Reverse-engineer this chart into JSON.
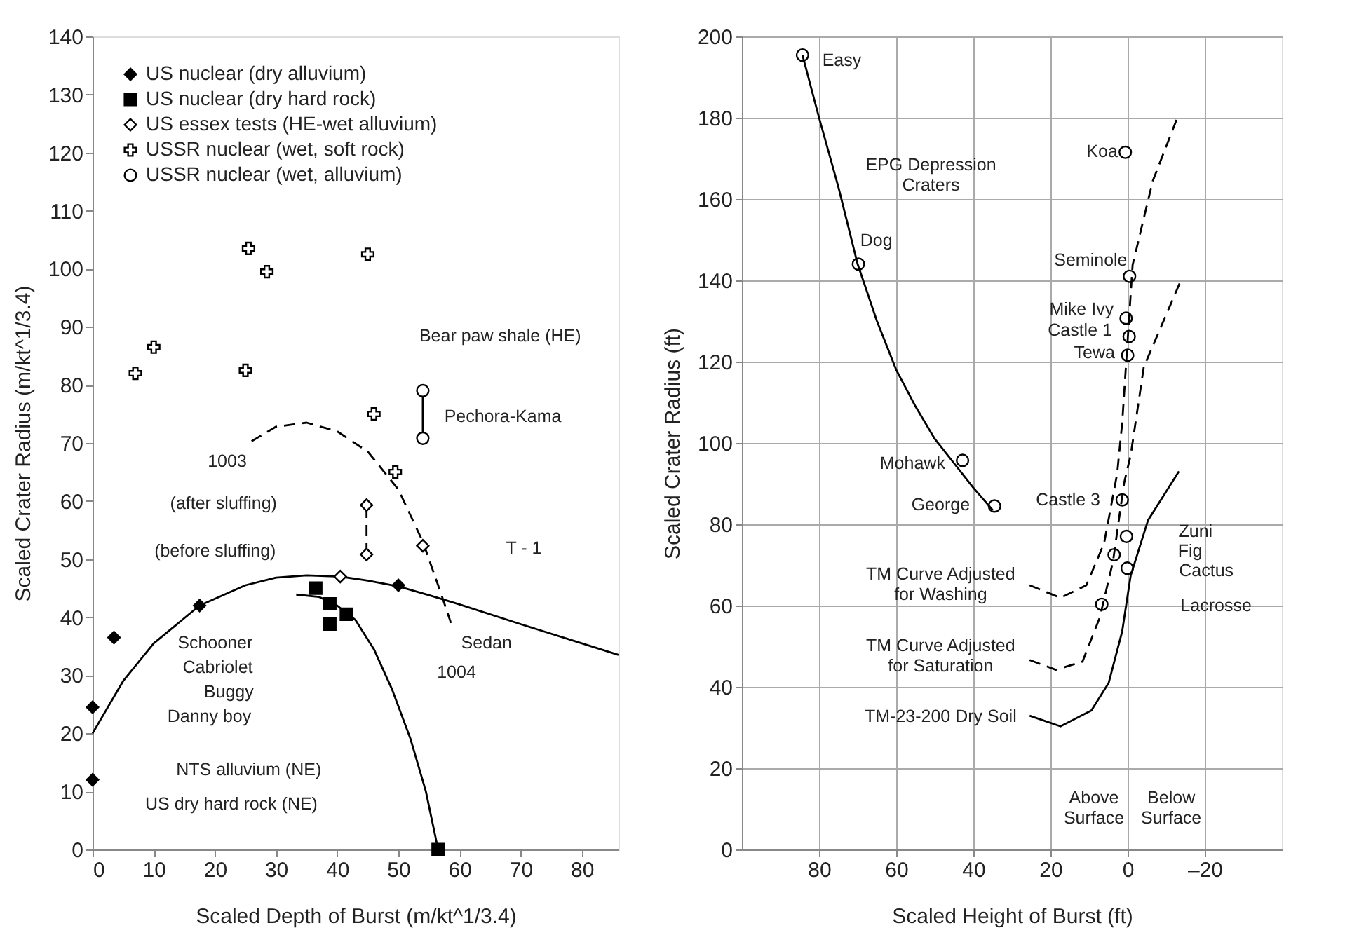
{
  "chart_data": [
    {
      "type": "scatter",
      "xlabel": "Scaled Depth of Burst (m/kt^1/3.4)",
      "ylabel": "Scaled Crater Radius (m/kt^1/3.4)",
      "xlim": [
        0,
        86
      ],
      "ylim": [
        0,
        140
      ],
      "xticks": [
        0,
        10,
        20,
        30,
        40,
        50,
        60,
        70,
        80
      ],
      "yticks": [
        0,
        10,
        20,
        30,
        40,
        50,
        60,
        70,
        80,
        90,
        100,
        110,
        120,
        130,
        140
      ],
      "grid": false,
      "legend": "top left",
      "series": [
        {
          "name": "US nuclear (dry alluvium)",
          "marker": "diamond",
          "color": "#000000",
          "x": [
            0,
            0,
            3.5,
            17.5,
            50
          ],
          "values": [
            12,
            24.5,
            36.5,
            42,
            45.5
          ]
        },
        {
          "name": "US nuclear (dry hard rock)",
          "marker": "square",
          "color": "#000000",
          "x": [
            36.5,
            38.8,
            38.8,
            41.5,
            56.5
          ],
          "values": [
            45,
            42.3,
            38.8,
            40.5,
            0
          ]
        },
        {
          "name": "US essex tests (HE-wet alluvium)",
          "marker": "diamond",
          "color": "#ffffff",
          "x": [
            44.8,
            44.8,
            40.5,
            54
          ],
          "values": [
            59.3,
            50.8,
            47,
            52.3
          ]
        },
        {
          "name": "USSR nuclear (wet, soft rock)",
          "marker": "cross",
          "color": "#ffffff",
          "x": [
            7,
            10,
            25,
            25.5,
            28.5,
            45,
            46,
            49.5
          ],
          "values": [
            82,
            86.5,
            82.5,
            103.5,
            99.5,
            102.5,
            75,
            65
          ]
        },
        {
          "name": "USSR nuclear (wet, alluvium)",
          "marker": "circle",
          "color": "#ffffff",
          "x": [
            54,
            54
          ],
          "values": [
            79,
            70.8
          ]
        },
        {
          "type": "line",
          "line_style": "solid",
          "color": "#000000",
          "x": [
            0,
            5,
            10,
            17.5,
            25,
            30,
            35,
            40.5,
            45,
            50,
            55,
            60,
            70,
            80,
            86
          ],
          "values": [
            20,
            29,
            35.5,
            42,
            45.5,
            46.8,
            47.2,
            47,
            46.3,
            45.3,
            43.8,
            42.2,
            38.8,
            35.5,
            33.5
          ]
        },
        {
          "type": "line",
          "line_style": "solid",
          "color": "#000000",
          "x": [
            33.3,
            37,
            40,
            43,
            46,
            49,
            52,
            54.5,
            56.5
          ],
          "values": [
            43.9,
            43.5,
            42,
            39.5,
            34.5,
            27.5,
            19,
            10,
            0
          ]
        },
        {
          "type": "line",
          "line_style": "dashed",
          "color": "#000000",
          "x": [
            26,
            30,
            35,
            40,
            45,
            50,
            54,
            57,
            58.6
          ],
          "values": [
            70.3,
            72.8,
            73.5,
            72,
            68.5,
            62,
            53,
            44,
            39
          ]
        },
        {
          "type": "line",
          "line_style": "dashed",
          "color": "#000000",
          "x": [
            44.8,
            44.8
          ],
          "values": [
            50.8,
            59.3
          ]
        },
        {
          "type": "line",
          "line_style": "solid",
          "color": "#000000",
          "x": [
            54,
            54
          ],
          "values": [
            70.8,
            79
          ]
        }
      ],
      "annotations": [
        "Bear paw shale (HE)",
        "Pechora-Kama",
        "1003",
        "(after sluffing)",
        "(before sluffing)",
        "T - 1",
        "Schooner",
        "Cabriolet",
        "Buggy",
        "Danny boy",
        "Sedan",
        "1004",
        "NTS alluvium (NE)",
        "US dry hard rock (NE)"
      ]
    },
    {
      "type": "scatter",
      "xlabel": "Scaled Height of Burst (ft)",
      "ylabel": "Scaled Crater Radius (ft)",
      "xlim": [
        100,
        -40
      ],
      "ylim": [
        0,
        200
      ],
      "xticks": [
        80,
        60,
        40,
        20,
        0,
        {
          "value": -20,
          "label": "–20"
        }
      ],
      "yticks": [
        0,
        20,
        40,
        60,
        80,
        100,
        120,
        140,
        160,
        180,
        200
      ],
      "grid": true,
      "series": [
        {
          "marker": "circle",
          "color": "#ffffff",
          "x": [
            84.3,
            69.8,
            42.8,
            34.5,
            0.6,
            -0.5,
            0.4,
            -0.4,
            0,
            1.4,
            0.3,
            3.5,
            0.1,
            6.7
          ],
          "values": [
            195.4,
            144,
            95.7,
            84.5,
            171.5,
            141,
            130.7,
            126.2,
            121.6,
            86,
            77,
            72.5,
            69.2,
            60.3
          ]
        },
        {
          "type": "line",
          "line_style": "solid",
          "color": "#000000",
          "x": [
            84.3,
            80,
            75,
            70,
            65,
            60,
            55,
            50,
            45,
            40,
            35
          ],
          "values": [
            195.4,
            180,
            163,
            144,
            130,
            118,
            109,
            101,
            95,
            89,
            83.5
          ]
        },
        {
          "type": "line",
          "line_style": "solid",
          "color": "#000000",
          "x": [
            25.4,
            17.4,
            9.4,
            4.9,
            1.4,
            -0.8,
            -5.3,
            -13.3
          ],
          "values": [
            32.9,
            30.3,
            34.2,
            41,
            53.7,
            67.4,
            81,
            93
          ]
        },
        {
          "type": "line",
          "line_style": "dashed",
          "color": "#000000",
          "x": [
            25.4,
            17.4,
            10.7,
            6.1,
            2.7,
            1.4,
            -1.3,
            -6.5,
            -13.3
          ],
          "values": [
            65,
            61.9,
            65,
            75.3,
            92.5,
            105,
            143.8,
            164.4,
            181
          ]
        },
        {
          "type": "line",
          "line_style": "dashed",
          "color": "#000000",
          "x": [
            25.4,
            18.6,
            11.7,
            7.2,
            3.8,
            0.9,
            -0.8,
            -4.2,
            -14
          ],
          "values": [
            46.6,
            44.2,
            46.2,
            57.1,
            70.8,
            90.2,
            97,
            118.7,
            140.4
          ]
        }
      ],
      "annotations": [
        "Easy",
        "EPG Depression\nCraters",
        "Dog",
        "Koa",
        "Seminole",
        "Mike Ivy",
        "Castle 1",
        "Tewa",
        "Mohawk",
        "George",
        "Castle 3",
        "Zuni",
        "Fig",
        "Cactus",
        "Lacrosse",
        "TM Curve Adjusted\nfor Washing",
        "TM Curve Adjusted\nfor Saturation",
        "TM-23-200 Dry Soil",
        "Above\nSurface",
        "Below\nSurface"
      ]
    }
  ]
}
